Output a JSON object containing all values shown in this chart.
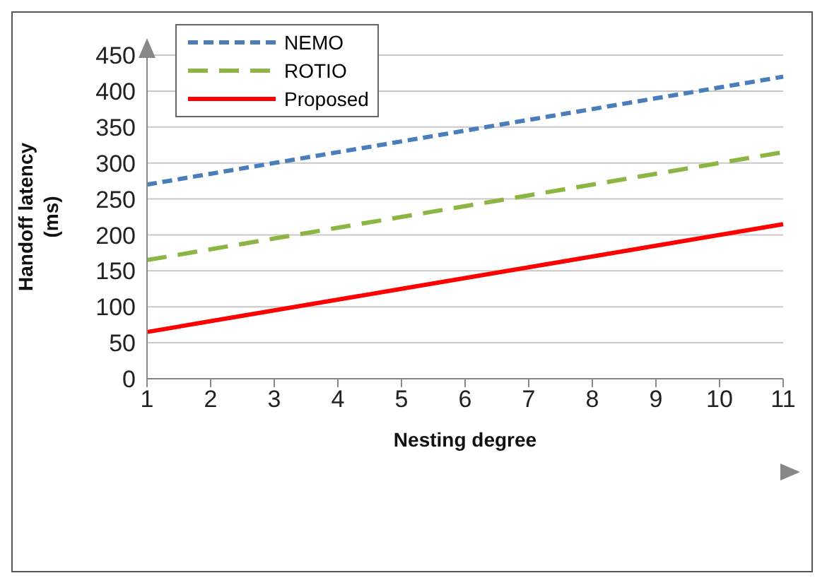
{
  "chart_data": {
    "type": "line",
    "xlabel": "Nesting degree",
    "ylabel": "Handoff latency (ms)",
    "categories": [
      "1",
      "2",
      "3",
      "4",
      "5",
      "6",
      "7",
      "8",
      "9",
      "10",
      "11"
    ],
    "series": [
      {
        "name": "NEMO",
        "color": "#4a7ebb",
        "line_style": "dotted",
        "values": [
          270,
          285,
          300,
          315,
          330,
          345,
          360,
          375,
          390,
          405,
          420
        ]
      },
      {
        "name": "ROTIO",
        "color": "#8db543",
        "line_style": "dashed",
        "values": [
          165,
          180,
          195,
          210,
          225,
          240,
          255,
          270,
          285,
          300,
          315
        ]
      },
      {
        "name": "Proposed",
        "color": "#ff0000",
        "line_style": "solid",
        "values": [
          65,
          80,
          95,
          110,
          125,
          140,
          155,
          170,
          185,
          200,
          215
        ]
      }
    ],
    "ylim": [
      0,
      450
    ],
    "yticks": [
      0,
      50,
      100,
      150,
      200,
      250,
      300,
      350,
      400,
      450
    ],
    "grid": "y",
    "legend": "top left",
    "marker": "none"
  }
}
